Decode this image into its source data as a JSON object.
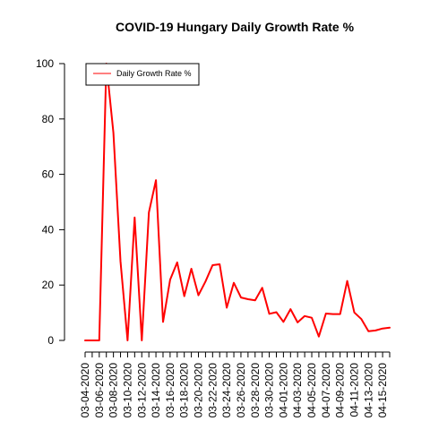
{
  "chart_data": {
    "type": "line",
    "title": "COVID-19 Hungary Daily Growth Rate %",
    "xlabel": "",
    "ylabel": "",
    "ylim": [
      0,
      100
    ],
    "y_ticks": [
      0,
      20,
      40,
      60,
      80,
      100
    ],
    "grid": false,
    "legend_position": "top-left",
    "x_tick_labels": [
      "03-04-2020",
      "03-06-2020",
      "03-08-2020",
      "03-10-2020",
      "03-12-2020",
      "03-14-2020",
      "03-16-2020",
      "03-18-2020",
      "03-20-2020",
      "03-22-2020",
      "03-24-2020",
      "03-26-2020",
      "03-28-2020",
      "03-30-2020",
      "04-01-2020",
      "04-03-2020",
      "04-05-2020",
      "04-07-2020",
      "04-09-2020",
      "04-11-2020",
      "04-13-2020",
      "04-15-2020"
    ],
    "x": [
      "03-04-2020",
      "03-05-2020",
      "03-06-2020",
      "03-07-2020",
      "03-08-2020",
      "03-09-2020",
      "03-10-2020",
      "03-11-2020",
      "03-12-2020",
      "03-13-2020",
      "03-14-2020",
      "03-15-2020",
      "03-16-2020",
      "03-17-2020",
      "03-18-2020",
      "03-19-2020",
      "03-20-2020",
      "03-21-2020",
      "03-22-2020",
      "03-23-2020",
      "03-24-2020",
      "03-25-2020",
      "03-26-2020",
      "03-27-2020",
      "03-28-2020",
      "03-29-2020",
      "03-30-2020",
      "03-31-2020",
      "04-01-2020",
      "04-02-2020",
      "04-03-2020",
      "04-04-2020",
      "04-05-2020",
      "04-06-2020",
      "04-07-2020",
      "04-08-2020",
      "04-09-2020",
      "04-10-2020",
      "04-11-2020",
      "04-12-2020",
      "04-13-2020",
      "04-14-2020",
      "04-15-2020",
      "04-16-2020"
    ],
    "series": [
      {
        "name": "Daily Growth Rate %",
        "color": "#ff0000",
        "values": [
          0,
          0,
          0,
          100,
          75,
          28.6,
          0,
          44.4,
          0,
          46.2,
          57.9,
          6.7,
          21.9,
          28.2,
          16,
          25.9,
          16.3,
          21.3,
          27.2,
          27.5,
          11.8,
          20.8,
          15.5,
          14.9,
          14.5,
          19,
          9.6,
          10.2,
          6.7,
          11.3,
          6.5,
          8.8,
          8.2,
          1.4,
          9.7,
          9.5,
          9.5,
          21.5,
          10.1,
          7.7,
          3.3,
          3.6,
          4.3,
          4.6
        ]
      }
    ]
  }
}
